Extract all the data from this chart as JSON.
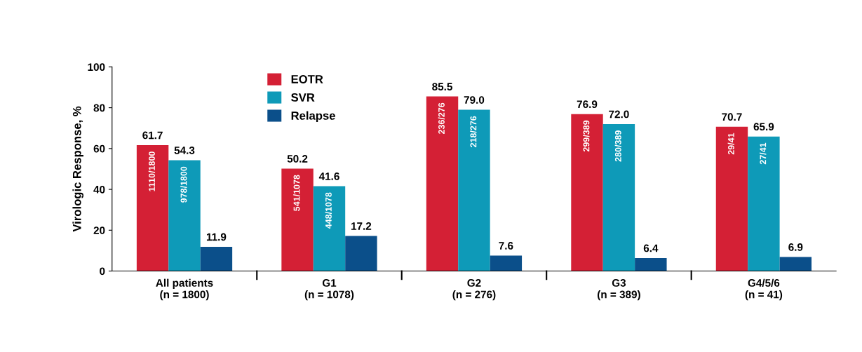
{
  "chart_data": {
    "type": "bar",
    "ylabel": "Virologic Response, %",
    "categories": [
      "All patients\n(n = 1800)",
      "G1\n(n = 1078)",
      "G2\n(n = 276)",
      "G3\n(n = 389)",
      "G4/5/6\n(n = 41)"
    ],
    "series": [
      {
        "name": "EOTR",
        "color": "#d42035",
        "values": [
          61.7,
          50.2,
          85.5,
          76.9,
          70.7
        ],
        "value_labels": [
          "61.7",
          "50.2",
          "85.5",
          "76.9",
          "70.7"
        ]
      },
      {
        "name": "SVR",
        "color": "#0e9ab8",
        "values": [
          54.3,
          41.6,
          79.0,
          72.0,
          65.9
        ],
        "value_labels": [
          "54.3",
          "41.6",
          "79.0",
          "72.0",
          "65.9"
        ]
      },
      {
        "name": "Relapse",
        "color": "#0b4f8a",
        "values": [
          11.9,
          17.2,
          7.6,
          6.4,
          6.9
        ],
        "value_labels": [
          "11.9",
          "17.2",
          "7.6",
          "6.4",
          "6.9"
        ]
      }
    ],
    "ylim": [
      0,
      100
    ],
    "yticks": [
      0,
      20,
      40,
      60,
      80,
      100
    ],
    "legend": "top left",
    "annotations": [
      "1110/1800",
      "978/1800",
      "541/1078",
      "448/1078",
      "236/276",
      "218/276",
      "299/389",
      "280/389",
      "29/41",
      "27/41"
    ]
  }
}
